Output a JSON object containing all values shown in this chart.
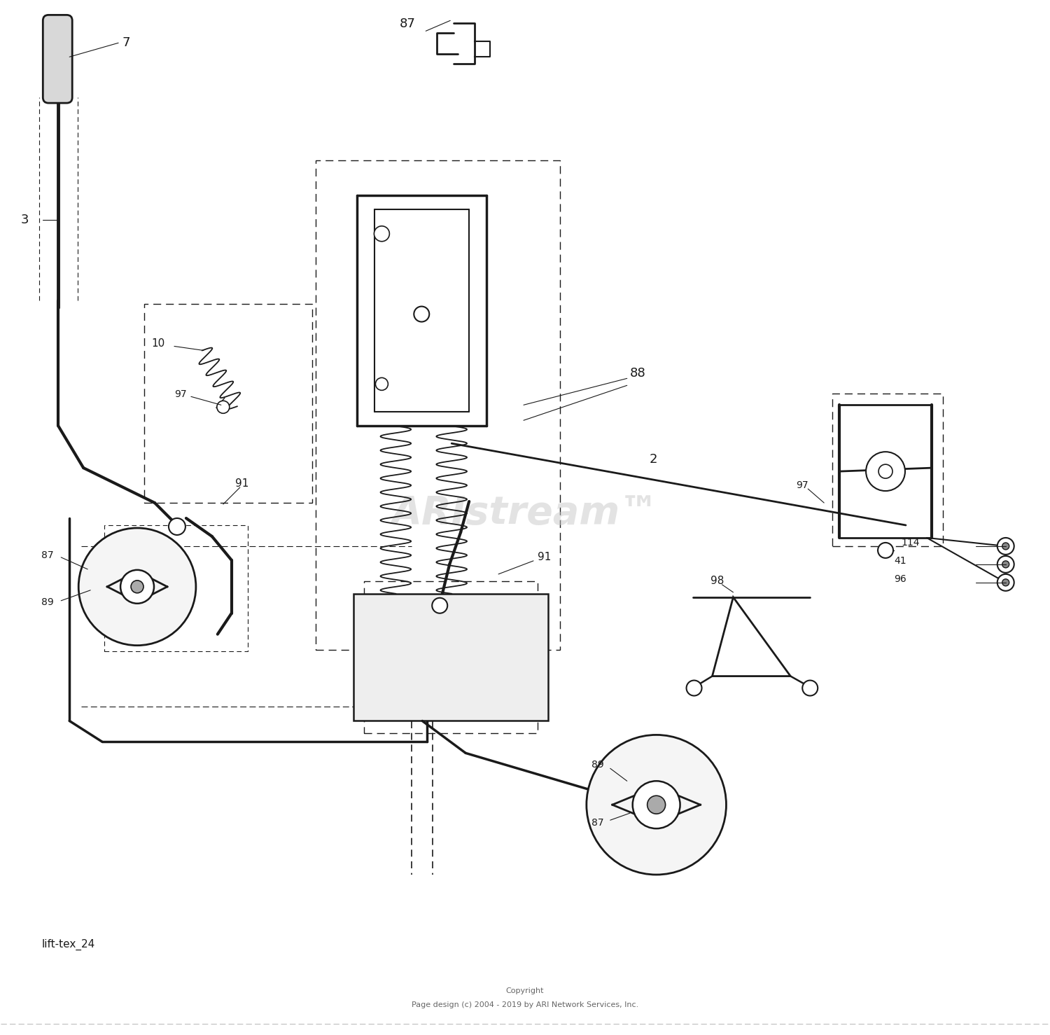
{
  "background_color": "#ffffff",
  "line_color": "#1a1a1a",
  "watermark_text": "ARIstream™",
  "copyright_line1": "Copyright",
  "copyright_line2": "Page design (c) 2004 - 2019 by ARI Network Services, Inc.",
  "footer_label": "lift-tex_24",
  "fig_width": 15.0,
  "fig_height": 14.78
}
